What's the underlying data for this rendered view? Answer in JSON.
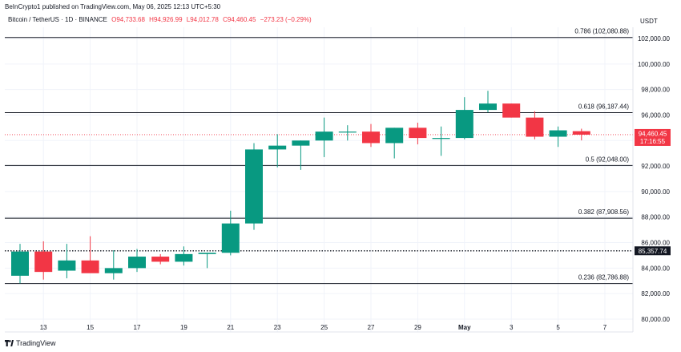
{
  "header": {
    "published": "BeInCrypto1 published on TradingView.com, May 06, 2025 12:13 UTC+5:30",
    "symbol": "Bitcoin / TetherUS · 1D · BINANCE",
    "open": "O94,733.68",
    "high": "H94,926.99",
    "low": "L94,012.78",
    "close": "C94,460.45",
    "change": "−273.23 (−0.29%)"
  },
  "currency": "USDT",
  "footer": {
    "brand": "TradingView"
  },
  "colors": {
    "up": "#089981",
    "down": "#f23645",
    "line": "#131722",
    "grid": "#f0f3fa"
  },
  "chart_data": {
    "type": "candlestick",
    "ylim": [
      79800,
      103000
    ],
    "y_ticks": [
      80000,
      82000,
      84000,
      86000,
      88000,
      90000,
      92000,
      94000,
      96000,
      98000,
      100000,
      102000
    ],
    "y_tick_labels": [
      "80,000.00",
      "82,000.00",
      "84,000.00",
      "86,000.00",
      "88,000.00",
      "90,000.00",
      "92,000.00",
      "94,000.00",
      "96,000.00",
      "98,000.00",
      "100,000.00",
      "102,000.00"
    ],
    "x_ticks": [
      {
        "index": 1,
        "label": "13"
      },
      {
        "index": 3,
        "label": "15"
      },
      {
        "index": 5,
        "label": "17"
      },
      {
        "index": 7,
        "label": "19"
      },
      {
        "index": 9,
        "label": "21"
      },
      {
        "index": 11,
        "label": "23"
      },
      {
        "index": 13,
        "label": "25"
      },
      {
        "index": 15,
        "label": "27"
      },
      {
        "index": 17,
        "label": "29"
      },
      {
        "index": 19,
        "label": "May",
        "bold": true
      },
      {
        "index": 21,
        "label": "3"
      },
      {
        "index": 23,
        "label": "5"
      },
      {
        "index": 25,
        "label": "7"
      }
    ],
    "candles": [
      {
        "o": 83400,
        "h": 85900,
        "l": 82800,
        "c": 85300
      },
      {
        "o": 85300,
        "h": 86100,
        "l": 83100,
        "c": 83700
      },
      {
        "o": 83800,
        "h": 85900,
        "l": 83200,
        "c": 84600
      },
      {
        "o": 84600,
        "h": 86500,
        "l": 83700,
        "c": 83600
      },
      {
        "o": 83600,
        "h": 85400,
        "l": 83100,
        "c": 84000
      },
      {
        "o": 84000,
        "h": 85500,
        "l": 83700,
        "c": 84900
      },
      {
        "o": 84900,
        "h": 85100,
        "l": 84300,
        "c": 84500
      },
      {
        "o": 84500,
        "h": 85700,
        "l": 84200,
        "c": 85100
      },
      {
        "o": 85100,
        "h": 85200,
        "l": 84000,
        "c": 85200
      },
      {
        "o": 85200,
        "h": 88500,
        "l": 85000,
        "c": 87500
      },
      {
        "o": 87500,
        "h": 93800,
        "l": 87000,
        "c": 93300
      },
      {
        "o": 93300,
        "h": 94500,
        "l": 91900,
        "c": 93600
      },
      {
        "o": 93600,
        "h": 94000,
        "l": 91700,
        "c": 94000
      },
      {
        "o": 94000,
        "h": 95800,
        "l": 92700,
        "c": 94700
      },
      {
        "o": 94700,
        "h": 95200,
        "l": 94000,
        "c": 94700
      },
      {
        "o": 94700,
        "h": 95300,
        "l": 93500,
        "c": 93800
      },
      {
        "o": 93800,
        "h": 95000,
        "l": 92600,
        "c": 95000
      },
      {
        "o": 95000,
        "h": 95400,
        "l": 93700,
        "c": 94200
      },
      {
        "o": 94200,
        "h": 95100,
        "l": 92800,
        "c": 94200
      },
      {
        "o": 94200,
        "h": 97400,
        "l": 94100,
        "c": 96400
      },
      {
        "o": 96400,
        "h": 97900,
        "l": 96200,
        "c": 96900
      },
      {
        "o": 96900,
        "h": 96900,
        "l": 95800,
        "c": 95800
      },
      {
        "o": 95800,
        "h": 96300,
        "l": 94100,
        "c": 94300
      },
      {
        "o": 94300,
        "h": 95100,
        "l": 93500,
        "c": 94800
      },
      {
        "o": 94733.68,
        "h": 94926.99,
        "l": 94012.78,
        "c": 94460.45
      }
    ],
    "fib_levels": [
      {
        "price": 102080.88,
        "label": "0.786 (102,080.88)"
      },
      {
        "price": 96187.44,
        "label": "0.618 (96,187.44)"
      },
      {
        "price": 92048.0,
        "label": "0.5 (92,048.00)"
      },
      {
        "price": 87908.56,
        "label": "0.382 (87,908.56)"
      },
      {
        "price": 82786.88,
        "label": "0.236 (82,786.88)"
      }
    ],
    "support_line": {
      "price": 85357.74,
      "label": "85,357.74"
    },
    "last_price": {
      "price": 94460.45,
      "label": "94,460.45",
      "countdown": "17:16:55"
    }
  }
}
